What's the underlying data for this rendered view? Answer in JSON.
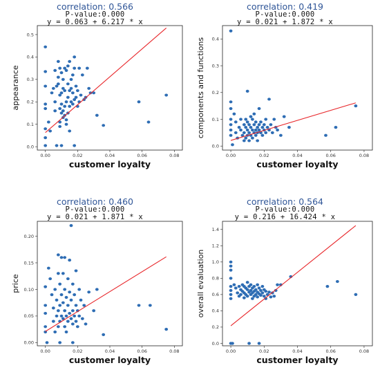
{
  "chart_data": [
    {
      "type": "scatter",
      "title": "correlation: 0.566",
      "subtitle_p": "P-value:0.000",
      "subtitle_eq": "y = 0.063 + 6.217 * x",
      "xlabel": "customer loyalty",
      "ylabel": "appearance",
      "xlim": [
        -0.005,
        0.085
      ],
      "ylim": [
        -0.015,
        0.54
      ],
      "xticks": [
        0.0,
        0.02,
        0.04,
        0.06,
        0.08
      ],
      "xtick_labels": [
        "0.00",
        "0.02",
        "0.04",
        "0.06",
        "0.08"
      ],
      "yticks": [
        0.0,
        0.1,
        0.2,
        0.3,
        0.4,
        0.5
      ],
      "ytick_labels": [
        "0.0",
        "0.1",
        "0.2",
        "0.3",
        "0.4",
        "0.5"
      ],
      "regression": {
        "intercept": 0.063,
        "slope": 6.217,
        "x_range": [
          0.0,
          0.075
        ]
      },
      "point_color": "#2e6db4",
      "line_color": "#e8262a",
      "points": [
        [
          0.0,
          0.445
        ],
        [
          0.0,
          0.335
        ],
        [
          0.0,
          0.27
        ],
        [
          0.0,
          0.19
        ],
        [
          0.0,
          0.17
        ],
        [
          0.0,
          0.08
        ],
        [
          0.0,
          0.04
        ],
        [
          0.0,
          0.005
        ],
        [
          0.002,
          0.11
        ],
        [
          0.003,
          0.07
        ],
        [
          0.004,
          0.24
        ],
        [
          0.005,
          0.26
        ],
        [
          0.006,
          0.34
        ],
        [
          0.006,
          0.2
        ],
        [
          0.006,
          0.16
        ],
        [
          0.007,
          0.005
        ],
        [
          0.007,
          0.27
        ],
        [
          0.008,
          0.38
        ],
        [
          0.008,
          0.31
        ],
        [
          0.008,
          0.28
        ],
        [
          0.009,
          0.35
        ],
        [
          0.009,
          0.23
        ],
        [
          0.009,
          0.17
        ],
        [
          0.009,
          0.11
        ],
        [
          0.009,
          0.09
        ],
        [
          0.01,
          0.33
        ],
        [
          0.01,
          0.24
        ],
        [
          0.01,
          0.19
        ],
        [
          0.01,
          0.15
        ],
        [
          0.01,
          0.005
        ],
        [
          0.011,
          0.3
        ],
        [
          0.011,
          0.26
        ],
        [
          0.011,
          0.16
        ],
        [
          0.011,
          0.13
        ],
        [
          0.012,
          0.35
        ],
        [
          0.012,
          0.25
        ],
        [
          0.012,
          0.18
        ],
        [
          0.012,
          0.14
        ],
        [
          0.013,
          0.34
        ],
        [
          0.013,
          0.2
        ],
        [
          0.013,
          0.12
        ],
        [
          0.013,
          0.1
        ],
        [
          0.014,
          0.36
        ],
        [
          0.014,
          0.28
        ],
        [
          0.014,
          0.22
        ],
        [
          0.014,
          0.15
        ],
        [
          0.015,
          0.38
        ],
        [
          0.015,
          0.25
        ],
        [
          0.015,
          0.18
        ],
        [
          0.015,
          0.07
        ],
        [
          0.016,
          0.3
        ],
        [
          0.016,
          0.26
        ],
        [
          0.016,
          0.2
        ],
        [
          0.017,
          0.32
        ],
        [
          0.017,
          0.24
        ],
        [
          0.017,
          0.19
        ],
        [
          0.018,
          0.4
        ],
        [
          0.018,
          0.35
        ],
        [
          0.018,
          0.21
        ],
        [
          0.018,
          0.005
        ],
        [
          0.019,
          0.27
        ],
        [
          0.019,
          0.22
        ],
        [
          0.02,
          0.25
        ],
        [
          0.02,
          0.18
        ],
        [
          0.021,
          0.35
        ],
        [
          0.021,
          0.2
        ],
        [
          0.022,
          0.23
        ],
        [
          0.023,
          0.32
        ],
        [
          0.024,
          0.21
        ],
        [
          0.025,
          0.22
        ],
        [
          0.026,
          0.35
        ],
        [
          0.027,
          0.26
        ],
        [
          0.028,
          0.24
        ],
        [
          0.03,
          0.24
        ],
        [
          0.032,
          0.14
        ],
        [
          0.036,
          0.095
        ],
        [
          0.058,
          0.2
        ],
        [
          0.064,
          0.11
        ],
        [
          0.075,
          0.23
        ]
      ]
    },
    {
      "type": "scatter",
      "title": "correlation: 0.419",
      "subtitle_p": "P-value:0.000",
      "subtitle_eq": "y = 0.021 + 1.872 * x",
      "xlabel": "customer loyalty",
      "ylabel": "components and functions",
      "xlim": [
        -0.005,
        0.085
      ],
      "ylim": [
        -0.015,
        0.45
      ],
      "xticks": [
        0.0,
        0.02,
        0.04,
        0.06,
        0.08
      ],
      "xtick_labels": [
        "0.00",
        "0.02",
        "0.04",
        "0.06",
        "0.08"
      ],
      "yticks": [
        0.0,
        0.1,
        0.2,
        0.3,
        0.4
      ],
      "ytick_labels": [
        "0.0",
        "0.1",
        "0.2",
        "0.3",
        "0.4"
      ],
      "regression": {
        "intercept": 0.021,
        "slope": 1.872,
        "x_range": [
          0.0,
          0.075
        ]
      },
      "point_color": "#2e6db4",
      "line_color": "#e8262a",
      "points": [
        [
          0.0,
          0.43
        ],
        [
          0.0,
          0.165
        ],
        [
          0.0,
          0.14
        ],
        [
          0.0,
          0.1
        ],
        [
          0.0,
          0.08
        ],
        [
          0.0,
          0.06
        ],
        [
          0.0,
          0.04
        ],
        [
          0.001,
          0.005
        ],
        [
          0.002,
          0.12
        ],
        [
          0.003,
          0.09
        ],
        [
          0.003,
          0.05
        ],
        [
          0.004,
          0.03
        ],
        [
          0.005,
          0.07
        ],
        [
          0.006,
          0.1
        ],
        [
          0.006,
          0.06
        ],
        [
          0.007,
          0.04
        ],
        [
          0.008,
          0.08
        ],
        [
          0.008,
          0.05
        ],
        [
          0.008,
          0.02
        ],
        [
          0.009,
          0.1
        ],
        [
          0.009,
          0.07
        ],
        [
          0.009,
          0.03
        ],
        [
          0.01,
          0.205
        ],
        [
          0.01,
          0.09
        ],
        [
          0.01,
          0.06
        ],
        [
          0.01,
          0.04
        ],
        [
          0.011,
          0.08
        ],
        [
          0.011,
          0.05
        ],
        [
          0.011,
          0.02
        ],
        [
          0.012,
          0.11
        ],
        [
          0.012,
          0.07
        ],
        [
          0.012,
          0.04
        ],
        [
          0.013,
          0.1
        ],
        [
          0.013,
          0.06
        ],
        [
          0.013,
          0.03
        ],
        [
          0.014,
          0.12
        ],
        [
          0.014,
          0.08
        ],
        [
          0.014,
          0.05
        ],
        [
          0.015,
          0.09
        ],
        [
          0.015,
          0.06
        ],
        [
          0.015,
          0.04
        ],
        [
          0.016,
          0.07
        ],
        [
          0.016,
          0.05
        ],
        [
          0.016,
          0.02
        ],
        [
          0.017,
          0.14
        ],
        [
          0.017,
          0.08
        ],
        [
          0.017,
          0.06
        ],
        [
          0.018,
          0.09
        ],
        [
          0.018,
          0.05
        ],
        [
          0.019,
          0.07
        ],
        [
          0.019,
          0.04
        ],
        [
          0.02,
          0.08
        ],
        [
          0.02,
          0.06
        ],
        [
          0.021,
          0.05
        ],
        [
          0.021,
          0.1
        ],
        [
          0.022,
          0.07
        ],
        [
          0.023,
          0.06
        ],
        [
          0.023,
          0.175
        ],
        [
          0.024,
          0.08
        ],
        [
          0.025,
          0.05
        ],
        [
          0.026,
          0.1
        ],
        [
          0.027,
          0.07
        ],
        [
          0.028,
          0.06
        ],
        [
          0.03,
          0.04
        ],
        [
          0.032,
          0.11
        ],
        [
          0.035,
          0.07
        ],
        [
          0.057,
          0.04
        ],
        [
          0.063,
          0.07
        ],
        [
          0.075,
          0.15
        ]
      ]
    },
    {
      "type": "scatter",
      "title": "correlation: 0.460",
      "subtitle_p": "P-value:0.000",
      "subtitle_eq": "y = 0.021 + 1.871 * x",
      "xlabel": "customer loyalty",
      "ylabel": "price",
      "xlim": [
        -0.005,
        0.085
      ],
      "ylim": [
        -0.006,
        0.228
      ],
      "xticks": [
        0.0,
        0.02,
        0.04,
        0.06,
        0.08
      ],
      "xtick_labels": [
        "0.00",
        "0.02",
        "0.04",
        "0.06",
        "0.08"
      ],
      "yticks": [
        0.0,
        0.05,
        0.1,
        0.15,
        0.2
      ],
      "ytick_labels": [
        "0.00",
        "0.05",
        "0.10",
        "0.15",
        "0.20"
      ],
      "regression": {
        "intercept": 0.021,
        "slope": 1.871,
        "x_range": [
          0.0,
          0.075
        ]
      },
      "point_color": "#2e6db4",
      "line_color": "#e8262a",
      "points": [
        [
          0.0,
          0.105
        ],
        [
          0.0,
          0.07
        ],
        [
          0.0,
          0.055
        ],
        [
          0.0,
          0.03
        ],
        [
          0.0,
          0.02
        ],
        [
          0.001,
          0.0
        ],
        [
          0.002,
          0.14
        ],
        [
          0.003,
          0.12
        ],
        [
          0.004,
          0.09
        ],
        [
          0.005,
          0.065
        ],
        [
          0.005,
          0.04
        ],
        [
          0.006,
          0.1
        ],
        [
          0.006,
          0.02
        ],
        [
          0.007,
          0.08
        ],
        [
          0.007,
          0.05
        ],
        [
          0.008,
          0.165
        ],
        [
          0.008,
          0.13
        ],
        [
          0.008,
          0.06
        ],
        [
          0.008,
          0.03
        ],
        [
          0.009,
          0.11
        ],
        [
          0.009,
          0.07
        ],
        [
          0.009,
          0.04
        ],
        [
          0.009,
          0.0
        ],
        [
          0.01,
          0.16
        ],
        [
          0.01,
          0.09
        ],
        [
          0.01,
          0.05
        ],
        [
          0.011,
          0.13
        ],
        [
          0.011,
          0.075
        ],
        [
          0.011,
          0.045
        ],
        [
          0.012,
          0.16
        ],
        [
          0.012,
          0.1
        ],
        [
          0.012,
          0.06
        ],
        [
          0.012,
          0.03
        ],
        [
          0.013,
          0.085
        ],
        [
          0.013,
          0.05
        ],
        [
          0.013,
          0.02
        ],
        [
          0.014,
          0.12
        ],
        [
          0.014,
          0.07
        ],
        [
          0.014,
          0.04
        ],
        [
          0.015,
          0.155
        ],
        [
          0.015,
          0.095
        ],
        [
          0.015,
          0.055
        ],
        [
          0.016,
          0.22
        ],
        [
          0.016,
          0.08
        ],
        [
          0.016,
          0.045
        ],
        [
          0.017,
          0.11
        ],
        [
          0.017,
          0.06
        ],
        [
          0.017,
          0.035
        ],
        [
          0.017,
          0.0
        ],
        [
          0.018,
          0.09
        ],
        [
          0.018,
          0.05
        ],
        [
          0.019,
          0.135
        ],
        [
          0.019,
          0.07
        ],
        [
          0.019,
          0.04
        ],
        [
          0.02,
          0.06
        ],
        [
          0.02,
          0.03
        ],
        [
          0.021,
          0.1
        ],
        [
          0.021,
          0.05
        ],
        [
          0.022,
          0.08
        ],
        [
          0.023,
          0.045
        ],
        [
          0.024,
          0.07
        ],
        [
          0.025,
          0.035
        ],
        [
          0.027,
          0.095
        ],
        [
          0.03,
          0.06
        ],
        [
          0.032,
          0.1
        ],
        [
          0.036,
          0.015
        ],
        [
          0.058,
          0.07
        ],
        [
          0.065,
          0.07
        ],
        [
          0.075,
          0.025
        ]
      ]
    },
    {
      "type": "scatter",
      "title": "correlation: 0.564",
      "subtitle_p": "P-value:0.000",
      "subtitle_eq": "y = 0.216 + 16.424 * x",
      "xlabel": "customer loyalty",
      "ylabel": "overall evaluation",
      "xlim": [
        -0.005,
        0.085
      ],
      "ylim": [
        -0.03,
        1.5
      ],
      "xticks": [
        0.0,
        0.02,
        0.04,
        0.06,
        0.08
      ],
      "xtick_labels": [
        "0.00",
        "0.02",
        "0.04",
        "0.06",
        "0.08"
      ],
      "yticks": [
        0.0,
        0.2,
        0.4,
        0.6,
        0.8,
        1.0,
        1.2,
        1.4
      ],
      "ytick_labels": [
        "0.0",
        "0.2",
        "0.4",
        "0.6",
        "0.8",
        "1.0",
        "1.2",
        "1.4"
      ],
      "regression": {
        "intercept": 0.216,
        "slope": 16.424,
        "x_range": [
          0.0,
          0.075
        ]
      },
      "point_color": "#2e6db4",
      "line_color": "#e8262a",
      "points": [
        [
          0.0,
          1.0
        ],
        [
          0.0,
          0.95
        ],
        [
          0.0,
          0.9
        ],
        [
          0.0,
          0.8
        ],
        [
          0.0,
          0.7
        ],
        [
          0.0,
          0.65
        ],
        [
          0.0,
          0.6
        ],
        [
          0.0,
          0.55
        ],
        [
          0.0,
          0.0
        ],
        [
          0.001,
          0.0
        ],
        [
          0.002,
          0.72
        ],
        [
          0.003,
          0.68
        ],
        [
          0.004,
          0.62
        ],
        [
          0.005,
          0.7
        ],
        [
          0.005,
          0.58
        ],
        [
          0.006,
          0.66
        ],
        [
          0.006,
          0.6
        ],
        [
          0.007,
          0.72
        ],
        [
          0.007,
          0.64
        ],
        [
          0.008,
          0.7
        ],
        [
          0.008,
          0.62
        ],
        [
          0.008,
          0.56
        ],
        [
          0.009,
          0.68
        ],
        [
          0.009,
          0.6
        ],
        [
          0.01,
          0.75
        ],
        [
          0.01,
          0.66
        ],
        [
          0.01,
          0.58
        ],
        [
          0.011,
          0.7
        ],
        [
          0.011,
          0.63
        ],
        [
          0.011,
          0.0
        ],
        [
          0.012,
          0.72
        ],
        [
          0.012,
          0.65
        ],
        [
          0.012,
          0.6
        ],
        [
          0.013,
          0.68
        ],
        [
          0.013,
          0.62
        ],
        [
          0.013,
          0.55
        ],
        [
          0.014,
          0.7
        ],
        [
          0.014,
          0.64
        ],
        [
          0.014,
          0.58
        ],
        [
          0.015,
          0.66
        ],
        [
          0.015,
          0.6
        ],
        [
          0.016,
          0.72
        ],
        [
          0.016,
          0.63
        ],
        [
          0.016,
          0.57
        ],
        [
          0.017,
          0.68
        ],
        [
          0.017,
          0.61
        ],
        [
          0.017,
          0.0
        ],
        [
          0.018,
          0.65
        ],
        [
          0.018,
          0.59
        ],
        [
          0.019,
          0.7
        ],
        [
          0.019,
          0.62
        ],
        [
          0.02,
          0.66
        ],
        [
          0.02,
          0.58
        ],
        [
          0.021,
          0.64
        ],
        [
          0.021,
          0.55
        ],
        [
          0.022,
          0.6
        ],
        [
          0.023,
          0.63
        ],
        [
          0.024,
          0.57
        ],
        [
          0.025,
          0.62
        ],
        [
          0.026,
          0.58
        ],
        [
          0.027,
          0.65
        ],
        [
          0.028,
          0.72
        ],
        [
          0.03,
          0.72
        ],
        [
          0.036,
          0.82
        ],
        [
          0.058,
          0.7
        ],
        [
          0.064,
          0.76
        ],
        [
          0.075,
          0.6
        ]
      ]
    }
  ]
}
